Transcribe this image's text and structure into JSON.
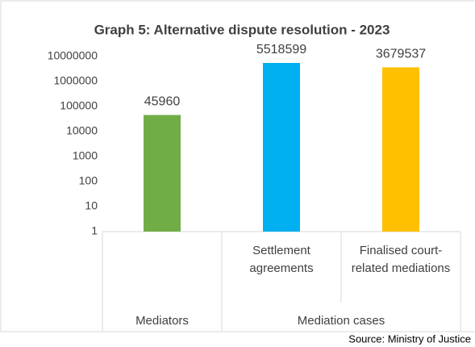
{
  "chart_data": {
    "type": "bar",
    "title": "Graph 5: Alternative dispute resolution - 2023",
    "categories": [
      null,
      "Settlement agreements",
      "Finalised court-related mediations"
    ],
    "groups": [
      {
        "name": "Mediators",
        "count": 1
      },
      {
        "name": "Mediation cases",
        "count": 2
      }
    ],
    "values": [
      45960,
      5518599,
      3679537
    ],
    "colors": [
      "#70ad47",
      "#00b0f0",
      "#ffc000"
    ],
    "log_scale": true,
    "ylim": [
      1,
      10000000
    ],
    "yticks": [
      1,
      10,
      100,
      1000,
      10000,
      100000,
      1000000,
      10000000
    ],
    "grid": false,
    "source": "Source: Ministry of Justice"
  }
}
